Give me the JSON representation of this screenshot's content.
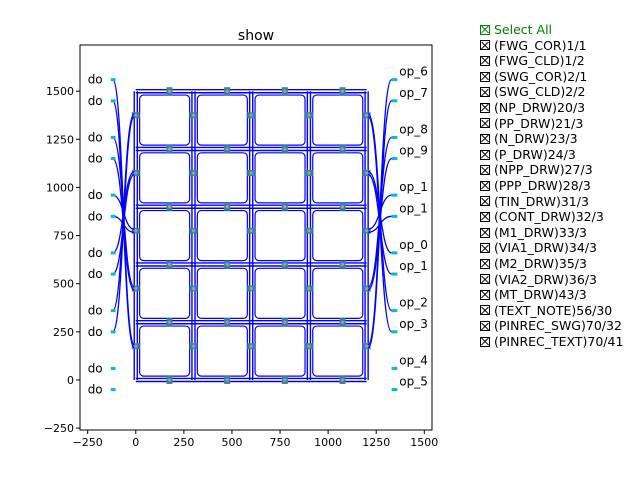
{
  "chart_data": {
    "type": "layout-plot",
    "title": "show",
    "xlim": [
      -290,
      1540
    ],
    "ylim": [
      -260,
      1740
    ],
    "xticks": [
      -250,
      0,
      250,
      500,
      750,
      1000,
      1250,
      1500
    ],
    "yticks": [
      -250,
      0,
      250,
      500,
      750,
      1000,
      1250,
      1500
    ],
    "colors": {
      "waveguide": "#0000ff",
      "port": "#00bcd4",
      "node": "#2e8b8b",
      "marker": "#d07cc8"
    },
    "grid_rows_y": [
      0,
      300,
      600,
      900,
      1200,
      1500
    ],
    "grid_cols_x": [
      0,
      300,
      600,
      900,
      1200
    ],
    "cross_x": [
      175,
      475,
      775,
      1075
    ],
    "cross_y": [
      175,
      475,
      775,
      1075,
      1375
    ],
    "left_ports": [
      {
        "label": "do",
        "y": 1560
      },
      {
        "label": "do",
        "y": 1450
      },
      {
        "label": "do",
        "y": 1260
      },
      {
        "label": "do",
        "y": 1150
      },
      {
        "label": "do",
        "y": 960
      },
      {
        "label": "do",
        "y": 850
      },
      {
        "label": "do",
        "y": 660
      },
      {
        "label": "do",
        "y": 550
      },
      {
        "label": "do",
        "y": 360
      },
      {
        "label": "do",
        "y": 250
      },
      {
        "label": "do",
        "y": 60
      },
      {
        "label": "do",
        "y": -50
      }
    ],
    "right_ports": [
      {
        "label": "op_6",
        "y": 1560
      },
      {
        "label": "op_7",
        "y": 1450
      },
      {
        "label": "op_8",
        "y": 1260
      },
      {
        "label": "op_9",
        "y": 1150
      },
      {
        "label": "op_1",
        "y": 960
      },
      {
        "label": "op_1",
        "y": 850
      },
      {
        "label": "op_0",
        "y": 660
      },
      {
        "label": "op_1",
        "y": 550
      },
      {
        "label": "op_2",
        "y": 360
      },
      {
        "label": "op_3",
        "y": 250
      },
      {
        "label": "op_4",
        "y": 60
      },
      {
        "label": "op_5",
        "y": -50
      }
    ]
  },
  "legend": {
    "items": [
      "Select All",
      "(FWG_COR)1/1",
      "(FWG_CLD)1/2",
      "(SWG_COR)2/1",
      "(SWG_CLD)2/2",
      "(NP_DRW)20/3",
      "(PP_DRW)21/3",
      "(N_DRW)23/3",
      "(P_DRW)24/3",
      "(NPP_DRW)27/3",
      "(PPP_DRW)28/3",
      "(TIN_DRW)31/3",
      "(CONT_DRW)32/3",
      "(M1_DRW)33/3",
      "(VIA1_DRW)34/3",
      "(M2_DRW)35/3",
      "(VIA2_DRW)36/3",
      "(MT_DRW)43/3",
      "(TEXT_NOTE)56/30",
      "(PINREC_SWG)70/32",
      "(PINREC_TEXT)70/41"
    ]
  }
}
